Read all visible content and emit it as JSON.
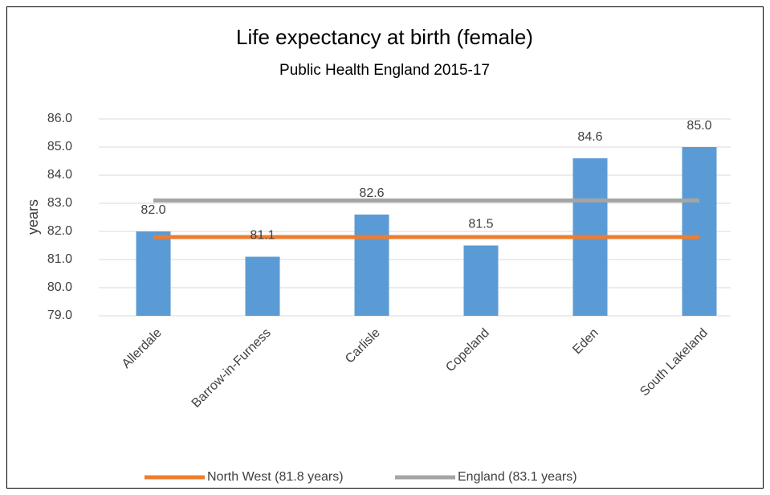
{
  "chart_data": {
    "type": "bar",
    "title": "Life expectancy at birth (female)",
    "subtitle": "Public Health England 2015-17",
    "ylabel": "years",
    "categories": [
      "Allerdale",
      "Barrow-in-Furness",
      "Carlisle",
      "Copeland",
      "Eden",
      "South Lakeland"
    ],
    "values": [
      82.0,
      81.1,
      82.6,
      81.5,
      84.6,
      85.0
    ],
    "value_labels": [
      "82.0",
      "81.1",
      "82.6",
      "81.5",
      "84.6",
      "85.0"
    ],
    "color": "#5b9bd5",
    "lines": [
      {
        "type": "line",
        "name": "North West (81.8 years)",
        "color": "#ed7d31",
        "values": [
          81.8,
          81.8,
          81.8,
          81.8,
          81.8,
          81.8
        ]
      },
      {
        "type": "line",
        "name": "England (83.1 years)",
        "color": "#a5a5a5",
        "values": [
          83.1,
          83.1,
          83.1,
          83.1,
          83.1,
          83.1
        ]
      }
    ],
    "ylim": [
      79,
      86
    ],
    "yticks": [
      {
        "value": 79,
        "label": "79.0"
      },
      {
        "value": 80,
        "label": "80.0"
      },
      {
        "value": 81,
        "label": "81.0"
      },
      {
        "value": 82,
        "label": "82.0"
      },
      {
        "value": 83,
        "label": "83.0"
      },
      {
        "value": 84,
        "label": "84.0"
      },
      {
        "value": 85,
        "label": "85.0"
      },
      {
        "value": 86,
        "label": "86.0"
      }
    ],
    "grid": true,
    "legend": "bottom"
  }
}
